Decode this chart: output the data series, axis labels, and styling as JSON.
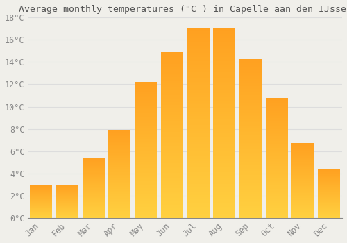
{
  "title": "Average monthly temperatures (°C ) in Capelle aan den IJssel",
  "months": [
    "Jan",
    "Feb",
    "Mar",
    "Apr",
    "May",
    "Jun",
    "Jul",
    "Aug",
    "Sep",
    "Oct",
    "Nov",
    "Dec"
  ],
  "temperatures": [
    2.9,
    3.0,
    5.4,
    7.9,
    12.2,
    14.9,
    17.0,
    17.0,
    14.3,
    10.8,
    6.7,
    4.4
  ],
  "ylim": [
    0,
    18
  ],
  "yticks": [
    0,
    2,
    4,
    6,
    8,
    10,
    12,
    14,
    16,
    18
  ],
  "ytick_labels": [
    "0°C",
    "2°C",
    "4°C",
    "6°C",
    "8°C",
    "10°C",
    "12°C",
    "14°C",
    "16°C",
    "18°C"
  ],
  "background_color": "#F0EFEA",
  "grid_color": "#DDDDDD",
  "title_fontsize": 9.5,
  "tick_fontsize": 8.5,
  "bar_color_bottom": "#FFD040",
  "bar_color_top": "#FFA020",
  "bar_edge_color": "none",
  "bar_width": 0.85,
  "n_gradient_steps": 100
}
